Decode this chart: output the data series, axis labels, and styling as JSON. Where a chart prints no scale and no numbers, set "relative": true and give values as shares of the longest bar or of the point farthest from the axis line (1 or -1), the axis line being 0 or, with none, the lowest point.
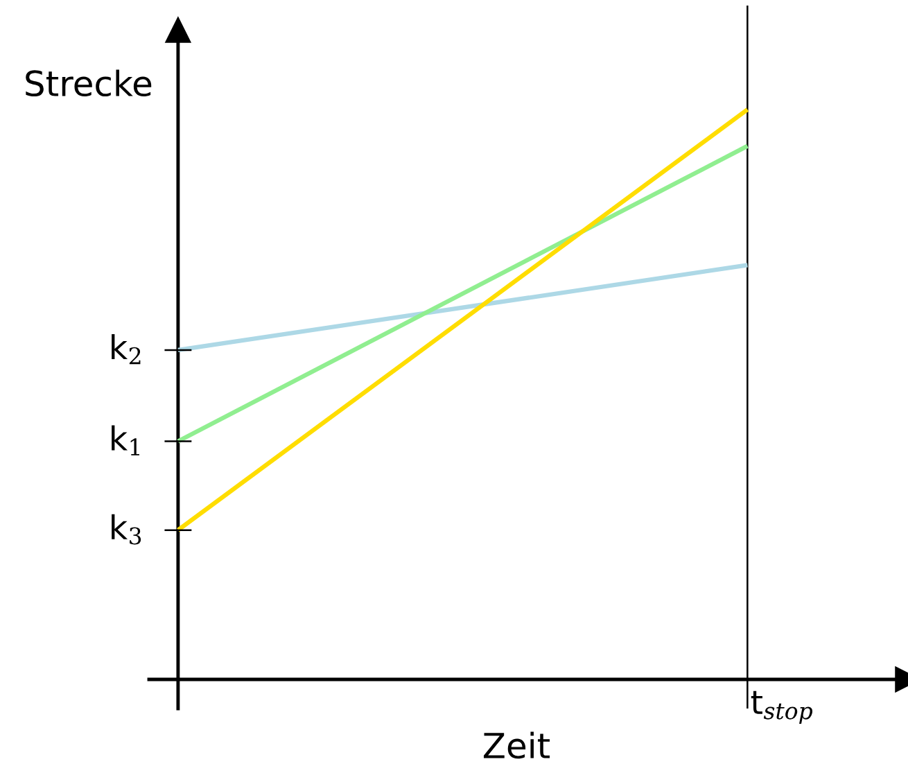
{
  "chart_data": {
    "type": "line",
    "relative": true,
    "xlabel": "Zeit",
    "ylabel": "Strecke",
    "categories": [
      null,
      null
    ],
    "series": [
      {
        "name": "k$_{2}$",
        "color": "#add8e6",
        "values": [
          0.578,
          0.727
        ]
      },
      {
        "name": "k$_{1}$",
        "color": "#90ee90",
        "values": [
          0.418,
          0.936
        ]
      },
      {
        "name": "k$_{3}$",
        "color": "#ffdd00",
        "values": [
          0.262,
          1.0
        ]
      }
    ],
    "ref_lines": [
      {
        "axis": "x",
        "label": "t$_{stop}$",
        "color": "#000000"
      }
    ],
    "marker": "none",
    "line_style": "solid"
  }
}
